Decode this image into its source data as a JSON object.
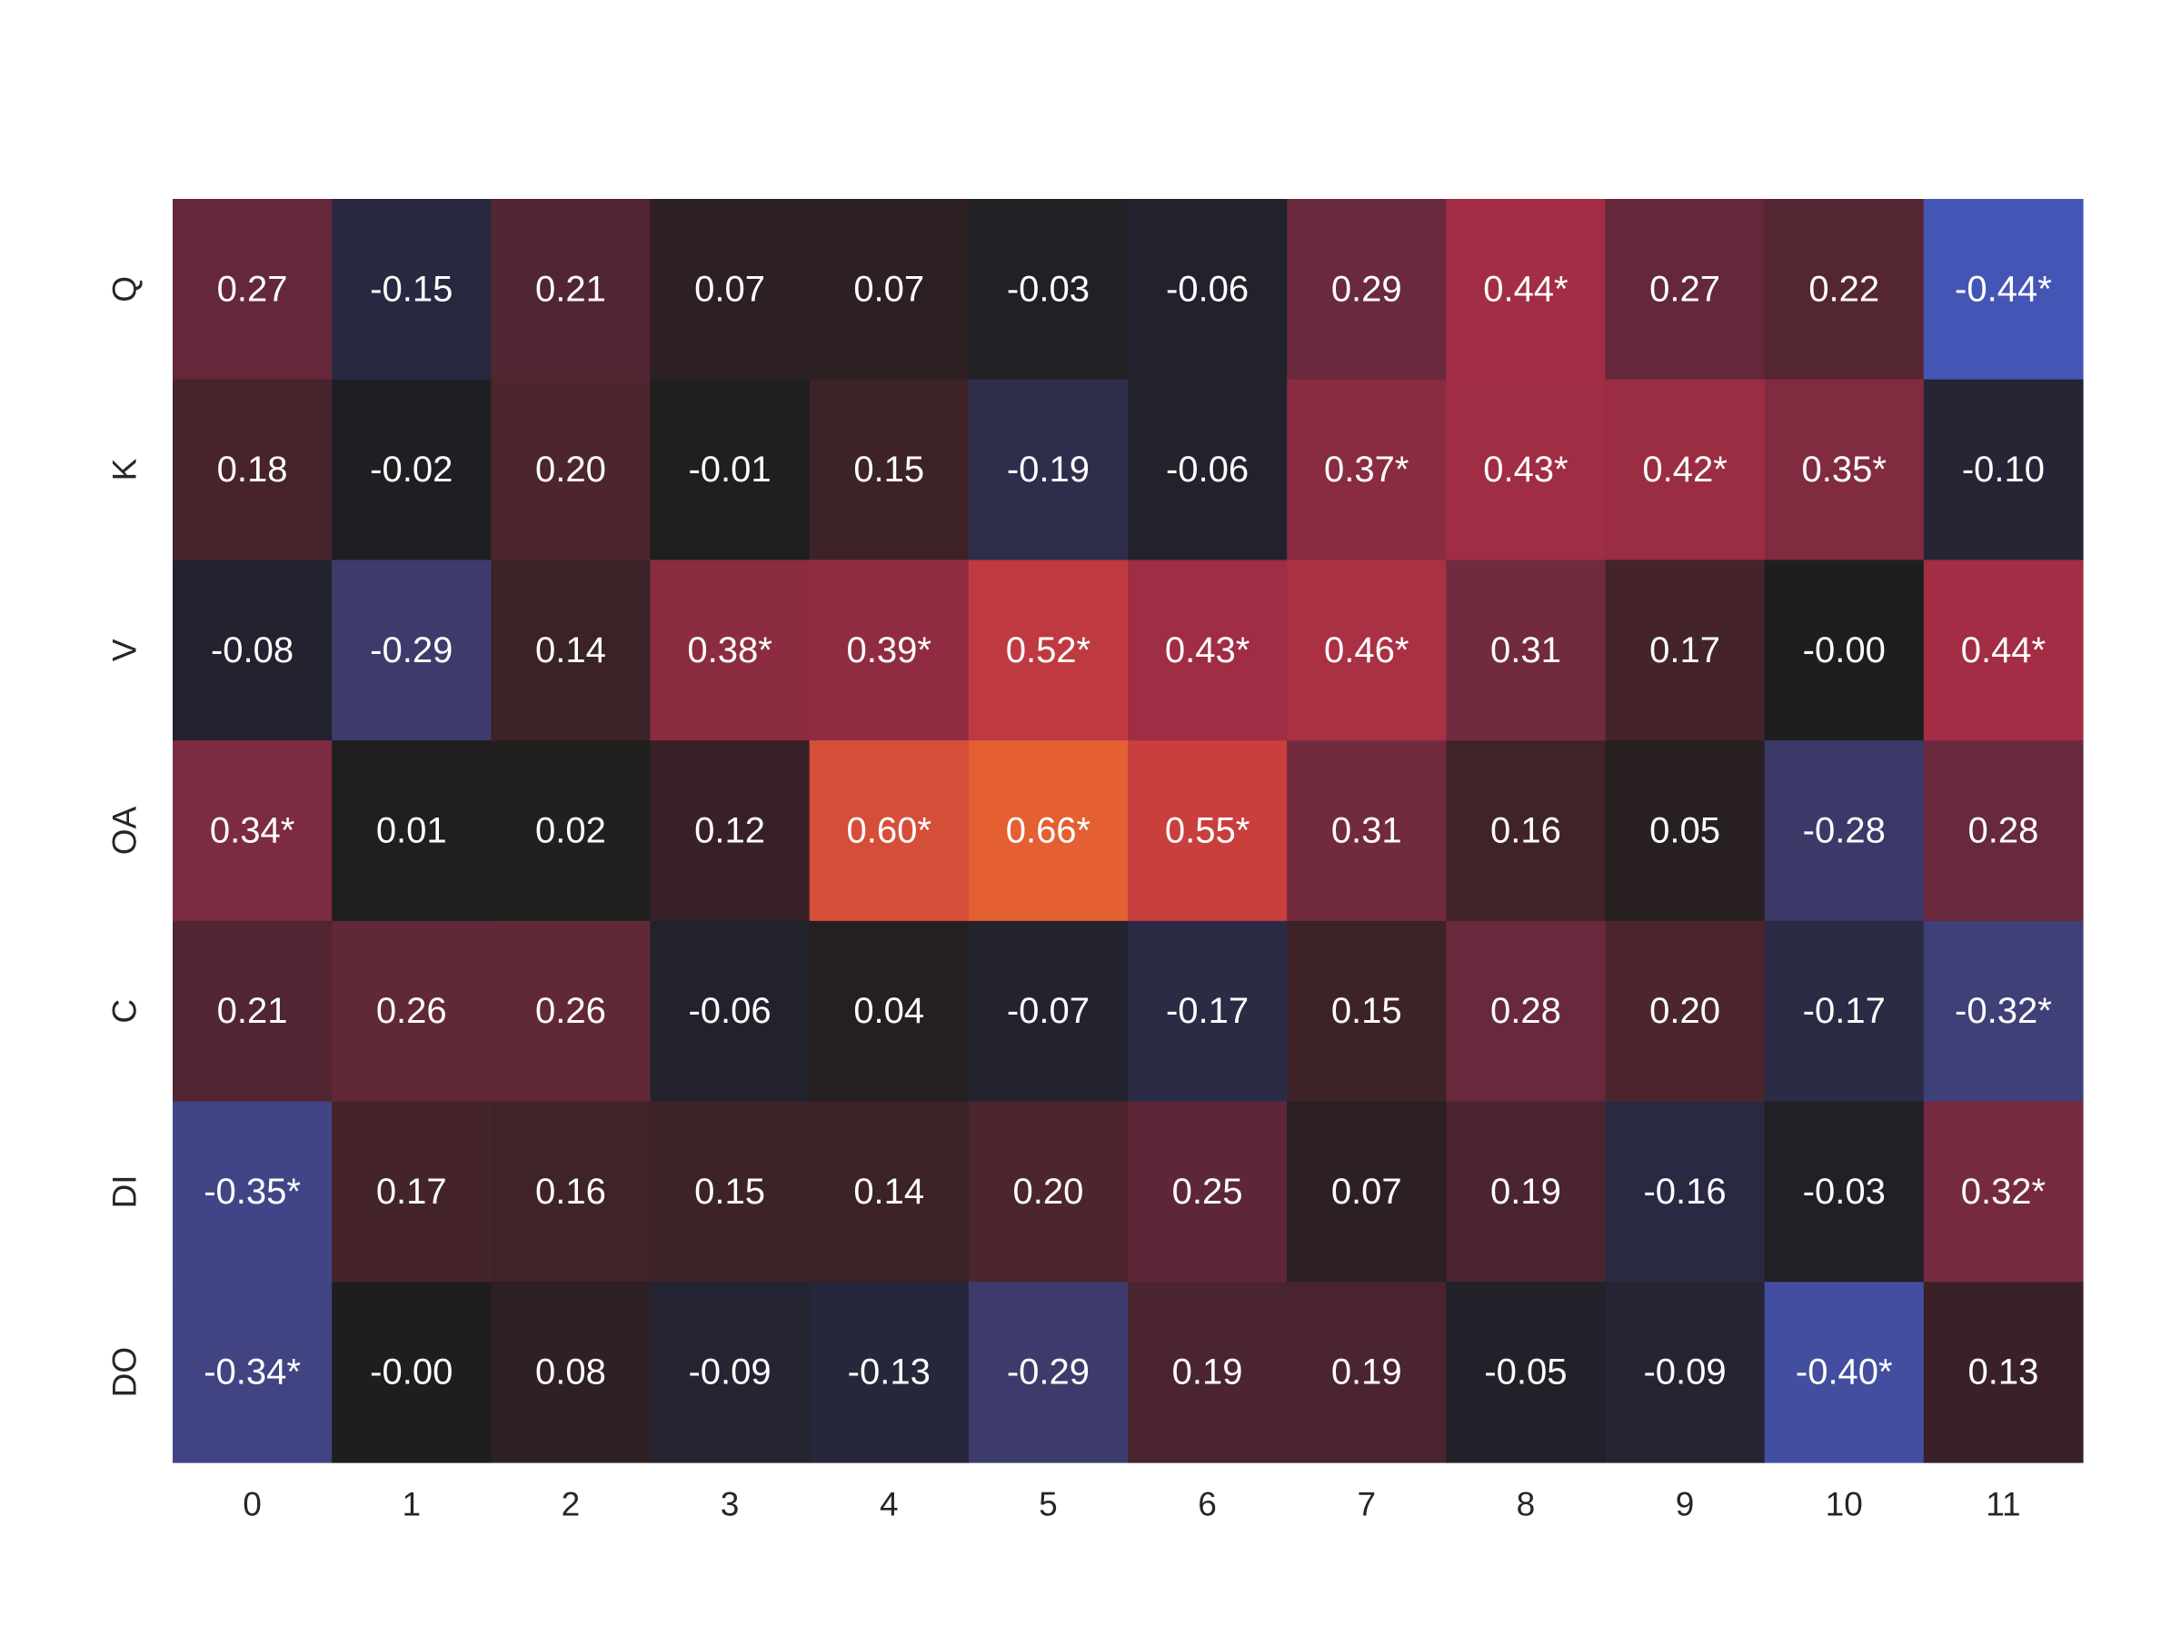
{
  "chart_data": {
    "type": "heatmap",
    "title": "",
    "xlabel": "",
    "ylabel": "",
    "x_categories": [
      "0",
      "1",
      "2",
      "3",
      "4",
      "5",
      "6",
      "7",
      "8",
      "9",
      "10",
      "11"
    ],
    "y_categories": [
      "Q",
      "K",
      "V",
      "OA",
      "C",
      "DI",
      "DO"
    ],
    "values": [
      [
        0.27,
        -0.15,
        0.21,
        0.07,
        0.07,
        -0.03,
        -0.06,
        0.29,
        0.44,
        0.27,
        0.22,
        -0.44
      ],
      [
        0.18,
        -0.02,
        0.2,
        -0.01,
        0.15,
        -0.19,
        -0.06,
        0.37,
        0.43,
        0.42,
        0.35,
        -0.1
      ],
      [
        -0.08,
        -0.29,
        0.14,
        0.38,
        0.39,
        0.52,
        0.43,
        0.46,
        0.31,
        0.17,
        -0.0,
        0.44
      ],
      [
        0.34,
        0.01,
        0.02,
        0.12,
        0.6,
        0.66,
        0.55,
        0.31,
        0.16,
        0.05,
        -0.28,
        0.28
      ],
      [
        0.21,
        0.26,
        0.26,
        -0.06,
        0.04,
        -0.07,
        -0.17,
        0.15,
        0.28,
        0.2,
        -0.17,
        -0.32
      ],
      [
        -0.35,
        0.17,
        0.16,
        0.15,
        0.14,
        0.2,
        0.25,
        0.07,
        0.19,
        -0.16,
        -0.03,
        0.32
      ],
      [
        -0.34,
        -0.0,
        0.08,
        -0.09,
        -0.13,
        -0.29,
        0.19,
        0.19,
        -0.05,
        -0.09,
        -0.4,
        0.13
      ]
    ],
    "annotations": [
      [
        "0.27",
        "-0.15",
        "0.21",
        "0.07",
        "0.07",
        "-0.03",
        "-0.06",
        "0.29",
        "0.44*",
        "0.27",
        "0.22",
        "-0.44*"
      ],
      [
        "0.18",
        "-0.02",
        "0.20",
        "-0.01",
        "0.15",
        "-0.19",
        "-0.06",
        "0.37*",
        "0.43*",
        "0.42*",
        "0.35*",
        "-0.10"
      ],
      [
        "-0.08",
        "-0.29",
        "0.14",
        "0.38*",
        "0.39*",
        "0.52*",
        "0.43*",
        "0.46*",
        "0.31",
        "0.17",
        "-0.00",
        "0.44*"
      ],
      [
        "0.34*",
        "0.01",
        "0.02",
        "0.12",
        "0.60*",
        "0.66*",
        "0.55*",
        "0.31",
        "0.16",
        "0.05",
        "-0.28",
        "0.28"
      ],
      [
        "0.21",
        "0.26",
        "0.26",
        "-0.06",
        "0.04",
        "-0.07",
        "-0.17",
        "0.15",
        "0.28",
        "0.20",
        "-0.17",
        "-0.32*"
      ],
      [
        "-0.35*",
        "0.17",
        "0.16",
        "0.15",
        "0.14",
        "0.20",
        "0.25",
        "0.07",
        "0.19",
        "-0.16",
        "-0.03",
        "0.32*"
      ],
      [
        "-0.34*",
        "-0.00",
        "0.08",
        "-0.09",
        "-0.13",
        "-0.29",
        "0.19",
        "0.19",
        "-0.05",
        "-0.09",
        "-0.40*",
        "0.13"
      ]
    ],
    "color_scale": {
      "type": "diverging",
      "center": 0,
      "vmin": -0.66,
      "vmax": 0.66,
      "stops": [
        {
          "value": -0.66,
          "color": "#3d5ef0"
        },
        {
          "value": -0.44,
          "color": "#4555b6"
        },
        {
          "value": -0.3,
          "color": "#3f3c6e"
        },
        {
          "value": -0.15,
          "color": "#282840"
        },
        {
          "value": 0.0,
          "color": "#1e1e1e"
        },
        {
          "value": 0.15,
          "color": "#3d2228"
        },
        {
          "value": 0.3,
          "color": "#6e2a3e"
        },
        {
          "value": 0.44,
          "color": "#a32d44"
        },
        {
          "value": 0.55,
          "color": "#c93f3e"
        },
        {
          "value": 0.66,
          "color": "#e45f32"
        }
      ]
    },
    "colorbar": false,
    "grid": false,
    "legend": "none"
  }
}
